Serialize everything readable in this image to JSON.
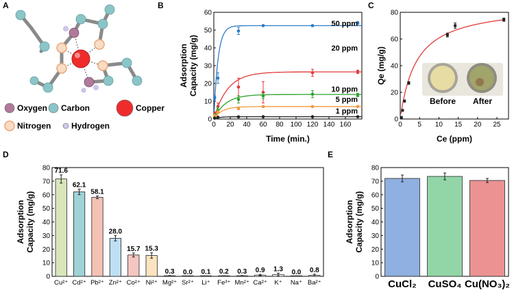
{
  "panels": {
    "A": {
      "label": "A",
      "legend": [
        {
          "name": "Oxygen",
          "color": "#b07a9a"
        },
        {
          "name": "Carbon",
          "color": "#8cc5c7"
        },
        {
          "name": "Copper",
          "color": "#ee2c2c"
        },
        {
          "name": "Nitrogen",
          "color": "#f6c8a6"
        },
        {
          "name": "Hydrogen",
          "color": "#cfc8ea"
        }
      ]
    },
    "B": {
      "label": "B"
    },
    "C": {
      "label": "C",
      "photo_labels": [
        "Before",
        "After"
      ]
    },
    "D": {
      "label": "D"
    },
    "E": {
      "label": "E"
    }
  },
  "chart_data": [
    {
      "id": "B",
      "type": "line",
      "title": "",
      "xlabel": "Time (min.)",
      "ylabel": [
        "Adsorption",
        "Capacity (mg/g)"
      ],
      "xlim": [
        0,
        180
      ],
      "ylim": [
        0,
        60
      ],
      "xticks": [
        0,
        20,
        40,
        60,
        80,
        100,
        120,
        140,
        160
      ],
      "yticks": [
        0,
        10,
        20,
        30,
        40,
        50,
        60
      ],
      "series": [
        {
          "name": "50 ppm",
          "color": "#2e7bc4",
          "x": [
            1,
            5,
            30,
            60,
            120,
            175
          ],
          "y": [
            12,
            23,
            49.5,
            52.5,
            52.5,
            54
          ],
          "err": [
            1,
            3,
            2,
            0.5,
            0.5,
            0.8
          ],
          "qmax": 52.5,
          "k": 0.2
        },
        {
          "name": "20 ppm",
          "color": "#e03a3a",
          "x": [
            1,
            5,
            30,
            60,
            120,
            175
          ],
          "y": [
            3,
            7,
            18,
            15,
            26,
            26.5
          ],
          "err": [
            1,
            2,
            5,
            6,
            2,
            1
          ],
          "qmax": 26.5,
          "k": 0.06
        },
        {
          "name": "10 ppm",
          "color": "#2ca02c",
          "x": [
            1,
            5,
            30,
            60,
            120,
            175
          ],
          "y": [
            2,
            5,
            11,
            13,
            14,
            13.5
          ],
          "err": [
            1,
            1.5,
            2,
            1.5,
            2,
            1
          ],
          "qmax": 13.8,
          "k": 0.07
        },
        {
          "name": "5 ppm",
          "color": "#f39a3e",
          "x": [
            1,
            5,
            30,
            60,
            120,
            175
          ],
          "y": [
            2,
            4,
            6,
            7,
            7,
            7
          ],
          "err": [
            0.5,
            0.5,
            0.8,
            0.6,
            0.5,
            0.4
          ],
          "qmax": 7,
          "k": 0.1
        },
        {
          "name": "1 ppm",
          "color": "#222222",
          "x": [
            1,
            5,
            30,
            60,
            120,
            175
          ],
          "y": [
            0.5,
            1,
            1.2,
            1.3,
            1.3,
            1.3
          ],
          "err": [
            0.2,
            0.2,
            0.2,
            0.2,
            0.2,
            0.2
          ],
          "qmax": 1.3,
          "k": 0.15
        }
      ]
    },
    {
      "id": "C",
      "type": "scatter",
      "title": "",
      "xlabel": "Ce (ppm)",
      "ylabel": "Qe (mg/g)",
      "xlim": [
        0,
        28
      ],
      "ylim": [
        0,
        80
      ],
      "xticks": [
        0,
        5,
        10,
        15,
        20,
        25
      ],
      "yticks": [
        0,
        20,
        40,
        60,
        80
      ],
      "points": {
        "x": [
          0.3,
          0.6,
          1.1,
          2.2,
          12.2,
          14.2,
          26.8
        ],
        "y": [
          1.2,
          6.5,
          13.5,
          27,
          63,
          70,
          74.5
        ],
        "err": [
          0.3,
          0.5,
          0.8,
          1,
          1.5,
          2,
          1.2
        ]
      },
      "fit": {
        "qmax": 86,
        "K": 0.24,
        "color": "#e03a3a"
      }
    },
    {
      "id": "D",
      "type": "bar",
      "title": "",
      "xlabel": "",
      "ylabel": [
        "Adsorption",
        "Capacity (mg/g)"
      ],
      "ylim": [
        0,
        80
      ],
      "yticks": [
        0,
        10,
        20,
        30,
        40,
        50,
        60,
        70,
        80
      ],
      "categories": [
        "Cu²⁺",
        "Cd²⁺",
        "Pb²⁺",
        "Zn²⁺",
        "Co²⁺",
        "Ni²⁺",
        "Mg²⁺",
        "Sr²⁺",
        "Li⁺",
        "Fe³⁺",
        "Mn²⁺",
        "Ca²⁺",
        "K⁺",
        "Na⁺",
        "Ba²⁺"
      ],
      "values": [
        71.6,
        62.1,
        58.1,
        28.0,
        15.7,
        15.3,
        0.3,
        0.0,
        0.1,
        0.2,
        0.3,
        0.9,
        1.3,
        0.0,
        0.8
      ],
      "labels": [
        "71.6",
        "62.1",
        "58.1",
        "28.0",
        "15.7",
        "15.3",
        "0.3",
        "0.0",
        "0.1",
        "0.2",
        "0.3",
        "0.9",
        "1.3",
        "0.0",
        "0.8"
      ],
      "err": [
        3,
        2,
        1,
        2,
        1.5,
        2,
        0.3,
        0,
        0.2,
        0.2,
        0.3,
        0.5,
        1,
        0,
        0.8
      ],
      "colors": [
        "#d9e6bb",
        "#9fd3d6",
        "#f5c1b5",
        "#bfdff5",
        "#f5c6c0",
        "#fbe3bf",
        "#ffffff",
        "#ffffff",
        "#ffffff",
        "#ffffff",
        "#ffffff",
        "#ffffff",
        "#ffffff",
        "#ffffff",
        "#ffffff"
      ]
    },
    {
      "id": "E",
      "type": "bar",
      "title": "",
      "xlabel": "",
      "ylabel": [
        "Adsorption",
        "Capacity (mg/g)"
      ],
      "ylim": [
        0,
        80
      ],
      "yticks": [
        0,
        10,
        20,
        30,
        40,
        50,
        60,
        70,
        80
      ],
      "categories": [
        "CuCl₂",
        "CuSO₄",
        "Cu(NO₃)₂"
      ],
      "values": [
        72,
        73.5,
        70.5
      ],
      "err": [
        2.5,
        2.5,
        1.5
      ],
      "colors": [
        "#8fb0e0",
        "#92d6a8",
        "#ec9292"
      ]
    }
  ]
}
